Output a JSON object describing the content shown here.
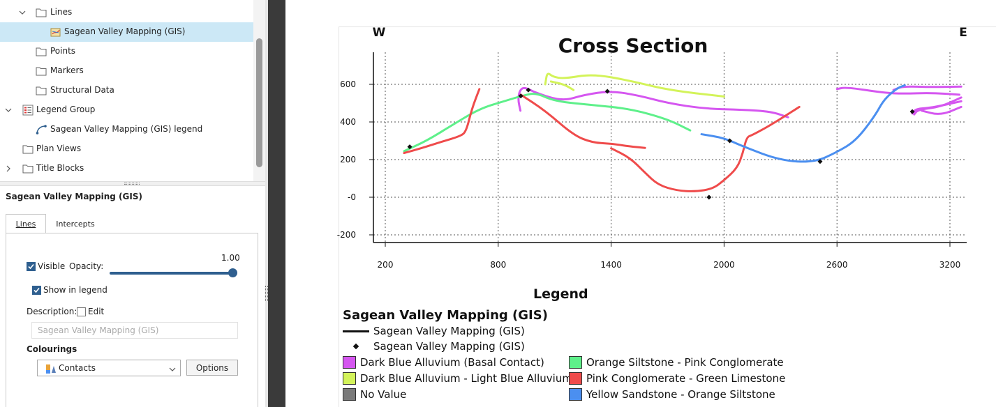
{
  "tree": {
    "items": [
      {
        "label": "Lines",
        "icon": "folder-icon"
      },
      {
        "label": "Sagean Valley Mapping (GIS)",
        "icon": "gis-lines-icon"
      },
      {
        "label": "Points",
        "icon": "folder-icon"
      },
      {
        "label": "Markers",
        "icon": "folder-icon"
      },
      {
        "label": "Structural Data",
        "icon": "folder-icon"
      },
      {
        "label": "Legend Group",
        "icon": "legend-group-icon"
      },
      {
        "label": "Sagean Valley Mapping (GIS) legend",
        "icon": "legend-item-icon"
      },
      {
        "label": "Plan Views",
        "icon": "folder-icon"
      },
      {
        "label": "Title Blocks",
        "icon": "folder-icon"
      }
    ]
  },
  "props": {
    "title": "Sagean Valley Mapping (GIS)",
    "tabs": [
      "Lines",
      "Intercepts"
    ],
    "visible_label": "Visible",
    "opacity_label": "Opacity:",
    "opacity_value": "1.00",
    "opacity": 1.0,
    "show_in_legend_label": "Show in legend",
    "description_label": "Description:",
    "edit_label": "Edit",
    "description_placeholder": "Sagean Valley Mapping (GIS)",
    "colourings_label": "Colourings",
    "colouring_value": "Contacts",
    "options_label": "Options"
  },
  "chart_data": {
    "type": "line",
    "title": "Cross Section",
    "west_label": "W",
    "east_label": "E",
    "xlim": [
      160,
      3260
    ],
    "ylim": [
      -240,
      780
    ],
    "xticks": [
      200,
      800,
      1400,
      2000,
      2600,
      3200
    ],
    "yticks": [
      600,
      400,
      200,
      0,
      -200
    ],
    "ytick_labels": [
      "600",
      "400",
      "200",
      "-0",
      "-200"
    ],
    "grid": true,
    "series": [
      {
        "name": "Dark Blue Alluvium (Basal Contact)",
        "color": "#d556f0",
        "points": [
          [
            918,
            460
          ],
          [
            905,
            520
          ],
          [
            915,
            570
          ],
          [
            940,
            585
          ],
          [
            1000,
            555
          ],
          [
            1140,
            510
          ],
          [
            1260,
            545
          ],
          [
            1400,
            565
          ],
          [
            1550,
            540
          ],
          [
            1700,
            500
          ],
          [
            1900,
            470
          ],
          [
            2100,
            465
          ],
          [
            2250,
            455
          ],
          [
            2340,
            425
          ]
        ]
      },
      {
        "name": "Dark Blue Alluvium (Basal Contact)",
        "color": "#d556f0",
        "points": [
          [
            2600,
            575
          ],
          [
            2650,
            585
          ],
          [
            2850,
            555
          ],
          [
            2950,
            550
          ],
          [
            3100,
            555
          ],
          [
            3250,
            545
          ]
        ]
      },
      {
        "name": "Dark Blue Alluvium (Basal Contact)",
        "color": "#d556f0",
        "points": [
          [
            2900,
            570
          ],
          [
            2950,
            590
          ],
          [
            3100,
            585
          ],
          [
            3260,
            588
          ]
        ]
      },
      {
        "name": "Dark Blue Alluvium (Basal Contact)",
        "color": "#d556f0",
        "points": [
          [
            3000,
            445
          ],
          [
            3020,
            470
          ],
          [
            3100,
            475
          ],
          [
            3260,
            510
          ]
        ]
      },
      {
        "name": "Dark Blue Alluvium (Basal Contact)",
        "color": "#d556f0",
        "points": [
          [
            3010,
            440
          ],
          [
            3030,
            465
          ],
          [
            3150,
            480
          ],
          [
            3260,
            530
          ]
        ]
      },
      {
        "name": "Dark Blue Alluvium (Basal Contact)",
        "color": "#d556f0",
        "points": [
          [
            3050,
            460
          ],
          [
            3150,
            435
          ],
          [
            3260,
            480
          ]
        ]
      },
      {
        "name": "Dark Blue Alluvium - Light Blue Alluvium",
        "color": "#d3f35a",
        "points": [
          [
            1050,
            600
          ],
          [
            1060,
            665
          ],
          [
            1090,
            640
          ],
          [
            1150,
            630
          ],
          [
            1300,
            655
          ],
          [
            1500,
            620
          ],
          [
            1700,
            570
          ],
          [
            2000,
            535
          ]
        ]
      },
      {
        "name": "Dark Blue Alluvium - Light Blue Alluvium",
        "color": "#d3f35a",
        "points": [
          [
            1080,
            615
          ],
          [
            1150,
            600
          ],
          [
            1200,
            570
          ]
        ]
      },
      {
        "name": "Orange Siltstone - Pink Conglomerate",
        "color": "#5ef08a",
        "points": [
          [
            300,
            245
          ],
          [
            420,
            300
          ],
          [
            550,
            380
          ],
          [
            700,
            470
          ],
          [
            830,
            510
          ],
          [
            930,
            540
          ],
          [
            1000,
            555
          ],
          [
            1100,
            510
          ],
          [
            1300,
            490
          ],
          [
            1500,
            470
          ],
          [
            1700,
            415
          ],
          [
            1820,
            355
          ]
        ]
      },
      {
        "name": "Pink Conglomerate - Green Limestone",
        "color": "#ef4b4b",
        "points": [
          [
            300,
            235
          ],
          [
            390,
            260
          ],
          [
            500,
            295
          ],
          [
            600,
            325
          ],
          [
            630,
            350
          ],
          [
            660,
            470
          ],
          [
            700,
            575
          ]
        ]
      },
      {
        "name": "Pink Conglomerate - Green Limestone",
        "color": "#ef4b4b",
        "points": [
          [
            920,
            545
          ],
          [
            1050,
            460
          ],
          [
            1200,
            330
          ],
          [
            1300,
            290
          ],
          [
            1400,
            285
          ],
          [
            1500,
            270
          ],
          [
            1580,
            262
          ]
        ]
      },
      {
        "name": "Pink Conglomerate - Green Limestone",
        "color": "#ef4b4b",
        "points": [
          [
            1400,
            260
          ],
          [
            1500,
            210
          ],
          [
            1580,
            130
          ],
          [
            1650,
            65
          ],
          [
            1750,
            35
          ],
          [
            1850,
            30
          ],
          [
            1940,
            45
          ],
          [
            2000,
            90
          ],
          [
            2070,
            155
          ],
          [
            2100,
            235
          ],
          [
            2120,
            320
          ],
          [
            2150,
            330
          ],
          [
            2250,
            385
          ],
          [
            2400,
            480
          ]
        ]
      },
      {
        "name": "Yellow Sandstone - Orange Siltstone",
        "color": "#4b8ff0",
        "points": [
          [
            1880,
            335
          ],
          [
            2000,
            315
          ],
          [
            2100,
            270
          ],
          [
            2300,
            195
          ],
          [
            2480,
            185
          ],
          [
            2600,
            240
          ],
          [
            2700,
            300
          ],
          [
            2800,
            430
          ],
          [
            2850,
            520
          ],
          [
            2920,
            580
          ],
          [
            2960,
            595
          ]
        ]
      }
    ],
    "markers": [
      [
        330,
        268
      ],
      [
        920,
        538
      ],
      [
        960,
        570
      ],
      [
        1380,
        563
      ],
      [
        2030,
        300
      ],
      [
        1920,
        0
      ],
      [
        2510,
        190
      ],
      [
        3000,
        455
      ]
    ]
  },
  "legend": {
    "title": "Legend",
    "group_title": "Sagean Valley Mapping (GIS)",
    "line_entry": "Sagean Valley Mapping (GIS)",
    "point_entry": "Sagean Valley Mapping (GIS)",
    "swatches": [
      {
        "label": "Dark Blue Alluvium (Basal Contact)",
        "color": "#d556f0"
      },
      {
        "label": "Dark Blue Alluvium - Light Blue Alluvium",
        "color": "#d3f35a"
      },
      {
        "label": "No Value",
        "color": "#7a7a7a"
      },
      {
        "label": "Orange Siltstone - Pink Conglomerate",
        "color": "#5ef08a"
      },
      {
        "label": "Pink Conglomerate - Green Limestone",
        "color": "#ef4b4b"
      },
      {
        "label": "Yellow Sandstone - Orange Siltstone",
        "color": "#4b8ff0"
      }
    ]
  }
}
